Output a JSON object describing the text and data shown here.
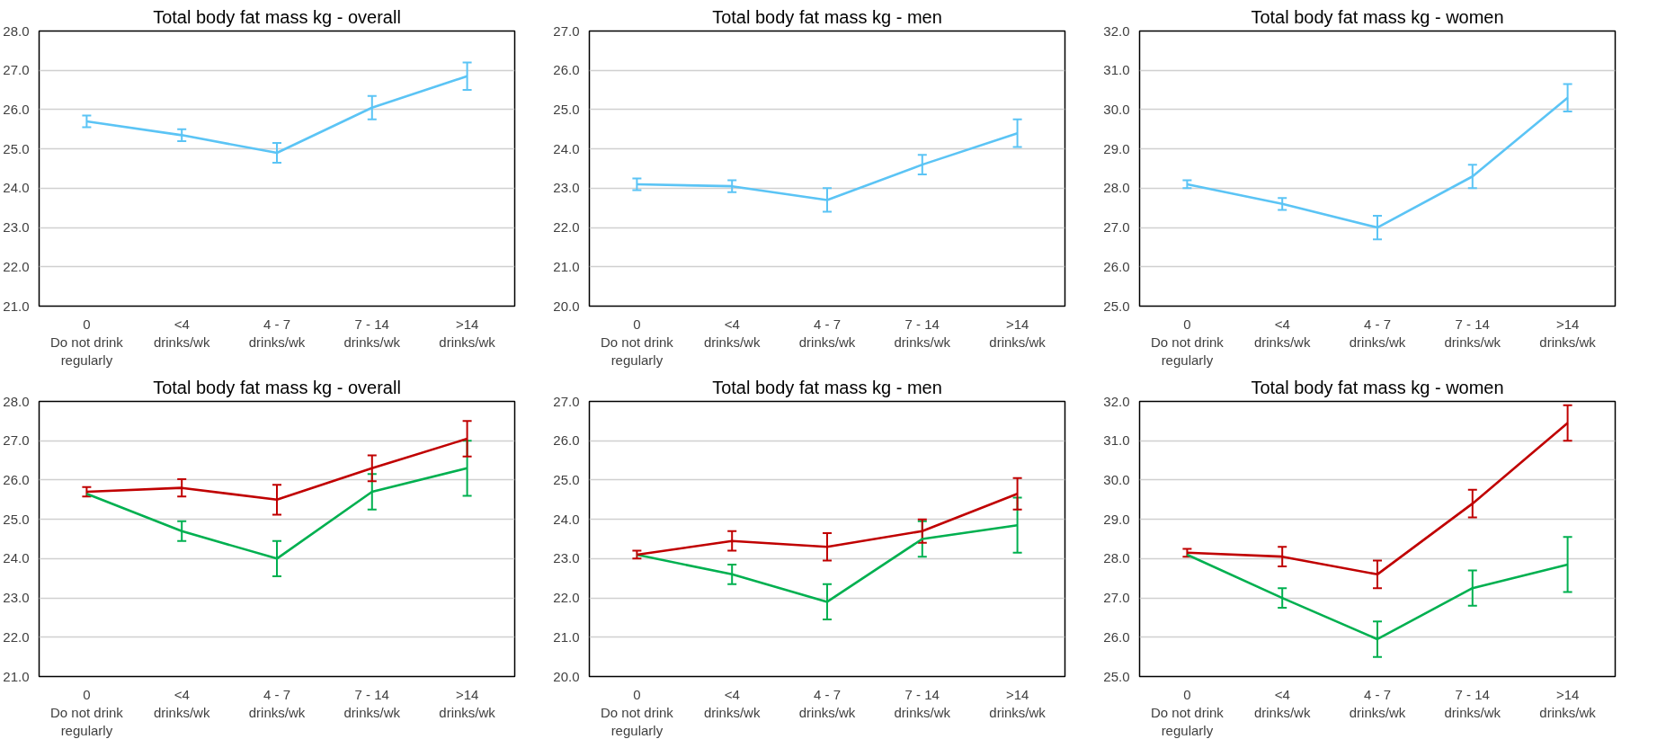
{
  "chart_data": [
    {
      "type": "line",
      "title": "Total body fat mass kg - overall",
      "categories": [
        "0\nDo not drink\nregularly",
        "<4\ndrinks/wk",
        "4 - 7\ndrinks/wk",
        "7 - 14\ndrinks/wk",
        ">14\ndrinks/wk"
      ],
      "ylim": [
        21,
        28
      ],
      "yticks": [
        {
          "value": 21,
          "label": "21.0"
        },
        {
          "value": 22,
          "label": "22.0"
        },
        {
          "value": 23,
          "label": "23.0"
        },
        {
          "value": 24,
          "label": "24.0"
        },
        {
          "value": 25,
          "label": "25.0"
        },
        {
          "value": 26,
          "label": "26.0"
        },
        {
          "value": 27,
          "label": "27.0"
        },
        {
          "value": 28,
          "label": "28.0"
        }
      ],
      "grid": "y",
      "marker": "none",
      "series": [
        {
          "color": "#5bc4f5",
          "values": [
            25.7,
            25.35,
            24.9,
            26.05,
            26.85
          ],
          "errors": [
            0.15,
            0.15,
            0.25,
            0.3,
            0.35
          ]
        }
      ]
    },
    {
      "type": "line",
      "title": "Total body fat mass kg - men",
      "categories": [
        "0\nDo not drink\nregularly",
        "<4\ndrinks/wk",
        "4 - 7\ndrinks/wk",
        "7 - 14\ndrinks/wk",
        ">14\ndrinks/wk"
      ],
      "ylim": [
        20,
        27
      ],
      "yticks": [
        {
          "value": 20,
          "label": "20.0"
        },
        {
          "value": 21,
          "label": "21.0"
        },
        {
          "value": 22,
          "label": "22.0"
        },
        {
          "value": 23,
          "label": "23.0"
        },
        {
          "value": 24,
          "label": "24.0"
        },
        {
          "value": 25,
          "label": "25.0"
        },
        {
          "value": 26,
          "label": "26.0"
        },
        {
          "value": 27,
          "label": "27.0"
        }
      ],
      "grid": "y",
      "marker": "none",
      "series": [
        {
          "color": "#5bc4f5",
          "values": [
            23.1,
            23.05,
            22.7,
            23.6,
            24.4
          ],
          "errors": [
            0.15,
            0.15,
            0.3,
            0.25,
            0.35
          ]
        }
      ]
    },
    {
      "type": "line",
      "title": "Total body fat mass kg - women",
      "categories": [
        "0\nDo not drink\nregularly",
        "<4\ndrinks/wk",
        "4 - 7\ndrinks/wk",
        "7 - 14\ndrinks/wk",
        ">14\ndrinks/wk"
      ],
      "ylim": [
        25,
        32
      ],
      "yticks": [
        {
          "value": 25,
          "label": "25.0"
        },
        {
          "value": 26,
          "label": "26.0"
        },
        {
          "value": 27,
          "label": "27.0"
        },
        {
          "value": 28,
          "label": "28.0"
        },
        {
          "value": 29,
          "label": "29.0"
        },
        {
          "value": 30,
          "label": "30.0"
        },
        {
          "value": 31,
          "label": "31.0"
        },
        {
          "value": 32,
          "label": "32.0"
        }
      ],
      "grid": "y",
      "marker": "none",
      "series": [
        {
          "color": "#5bc4f5",
          "values": [
            28.1,
            27.6,
            27.0,
            28.3,
            30.3
          ],
          "errors": [
            0.1,
            0.15,
            0.3,
            0.3,
            0.35
          ]
        }
      ]
    },
    {
      "type": "line",
      "title": "Total body fat mass kg - overall",
      "categories": [
        "0\nDo not drink\nregularly",
        "<4\ndrinks/wk",
        "4 - 7\ndrinks/wk",
        "7 - 14\ndrinks/wk",
        ">14\ndrinks/wk"
      ],
      "ylim": [
        21,
        28
      ],
      "yticks": [
        {
          "value": 21,
          "label": "21.0"
        },
        {
          "value": 22,
          "label": "22.0"
        },
        {
          "value": 23,
          "label": "23.0"
        },
        {
          "value": 24,
          "label": "24.0"
        },
        {
          "value": 25,
          "label": "25.0"
        },
        {
          "value": 26,
          "label": "26.0"
        },
        {
          "value": 27,
          "label": "27.0"
        },
        {
          "value": 28,
          "label": "28.0"
        }
      ],
      "grid": "y",
      "marker": "none",
      "series": [
        {
          "color": "#00b050",
          "values": [
            25.65,
            24.7,
            24.0,
            25.7,
            26.3
          ],
          "errors": [
            null,
            0.25,
            0.45,
            0.45,
            0.7
          ]
        },
        {
          "color": "#c00000",
          "values": [
            25.7,
            25.8,
            25.5,
            26.3,
            27.05
          ],
          "errors": [
            0.12,
            0.22,
            0.38,
            0.33,
            0.45
          ]
        }
      ]
    },
    {
      "type": "line",
      "title": "Total body fat mass kg - men",
      "categories": [
        "0\nDo not drink\nregularly",
        "<4\ndrinks/wk",
        "4 - 7\ndrinks/wk",
        "7 - 14\ndrinks/wk",
        ">14\ndrinks/wk"
      ],
      "ylim": [
        20,
        27
      ],
      "yticks": [
        {
          "value": 20,
          "label": "20.0"
        },
        {
          "value": 21,
          "label": "21.0"
        },
        {
          "value": 22,
          "label": "22.0"
        },
        {
          "value": 23,
          "label": "23.0"
        },
        {
          "value": 24,
          "label": "24.0"
        },
        {
          "value": 25,
          "label": "25.0"
        },
        {
          "value": 26,
          "label": "26.0"
        },
        {
          "value": 27,
          "label": "27.0"
        }
      ],
      "grid": "y",
      "marker": "none",
      "series": [
        {
          "color": "#00b050",
          "values": [
            23.1,
            22.6,
            21.9,
            23.5,
            23.85
          ],
          "errors": [
            null,
            0.25,
            0.45,
            0.45,
            0.7
          ]
        },
        {
          "color": "#c00000",
          "values": [
            23.1,
            23.45,
            23.3,
            23.7,
            24.65
          ],
          "errors": [
            0.1,
            0.25,
            0.35,
            0.3,
            0.4
          ]
        }
      ]
    },
    {
      "type": "line",
      "title": "Total body fat mass kg - women",
      "categories": [
        "0\nDo not drink\nregularly",
        "<4\ndrinks/wk",
        "4 - 7\ndrinks/wk",
        "7 - 14\ndrinks/wk",
        ">14\ndrinks/wk"
      ],
      "ylim": [
        25,
        32
      ],
      "yticks": [
        {
          "value": 25,
          "label": "25.0"
        },
        {
          "value": 26,
          "label": "26.0"
        },
        {
          "value": 27,
          "label": "27.0"
        },
        {
          "value": 28,
          "label": "28.0"
        },
        {
          "value": 29,
          "label": "29.0"
        },
        {
          "value": 30,
          "label": "30.0"
        },
        {
          "value": 31,
          "label": "31.0"
        },
        {
          "value": 32,
          "label": "32.0"
        }
      ],
      "grid": "y",
      "marker": "none",
      "series": [
        {
          "color": "#00b050",
          "values": [
            28.1,
            27.0,
            25.95,
            27.25,
            27.85
          ],
          "errors": [
            null,
            0.25,
            0.45,
            0.45,
            0.7
          ]
        },
        {
          "color": "#c00000",
          "values": [
            28.15,
            28.05,
            27.6,
            29.4,
            31.45
          ],
          "errors": [
            0.1,
            0.25,
            0.35,
            0.35,
            0.45
          ]
        }
      ]
    }
  ]
}
